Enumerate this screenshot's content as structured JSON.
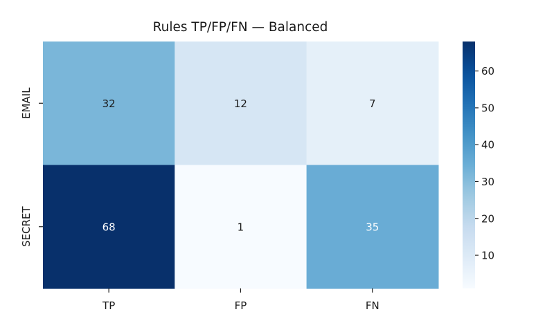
{
  "chart_data": {
    "type": "heatmap",
    "title": "Rules TP/FP/FN — Balanced",
    "xlabel": "",
    "ylabel": "",
    "x_categories": [
      "TP",
      "FP",
      "FN"
    ],
    "y_categories": [
      "EMAIL",
      "SECRET"
    ],
    "values": [
      [
        32,
        12,
        7
      ],
      [
        68,
        1,
        35
      ]
    ],
    "colormap": "Blues",
    "color_range": [
      1,
      68
    ],
    "colorbar_ticks": [
      10,
      20,
      30,
      40,
      50,
      60
    ],
    "annotated": true,
    "colors": {
      "low": "#f7fbff",
      "high": "#08306b"
    }
  }
}
